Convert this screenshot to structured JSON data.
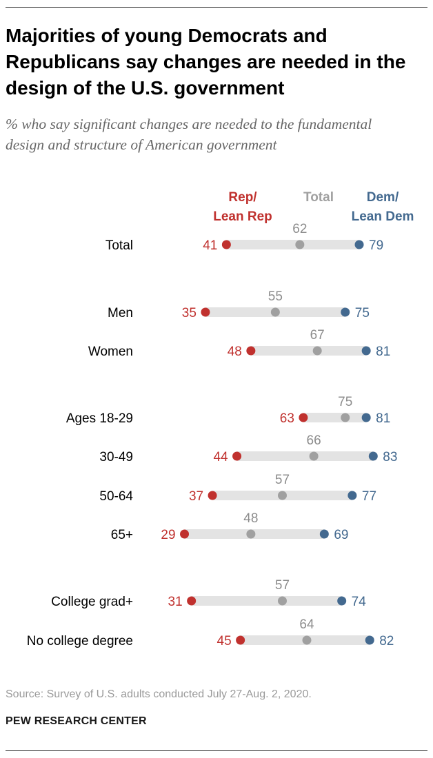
{
  "chart_data": {
    "type": "dot-plot",
    "title": "Majorities of young Democrats and Republicans say changes are needed in the design of the U.S. government",
    "subtitle": "% who say significant changes are needed to the fundamental design and structure of American government",
    "series": [
      {
        "key": "rep",
        "name": "Rep/\nLean Rep",
        "color": "#c0312e"
      },
      {
        "key": "total",
        "name": "Total",
        "color": "#a0a0a0"
      },
      {
        "key": "dem",
        "name": "Dem/\nLean Dem",
        "color": "#43698f"
      }
    ],
    "rows": [
      {
        "label": "Total",
        "rep": 41,
        "total": 62,
        "dem": 79
      },
      {
        "label": "Men",
        "rep": 35,
        "total": 55,
        "dem": 75
      },
      {
        "label": "Women",
        "rep": 48,
        "total": 67,
        "dem": 81
      },
      {
        "label": "Ages 18-29",
        "rep": 63,
        "total": 75,
        "dem": 81
      },
      {
        "label": "30-49",
        "rep": 44,
        "total": 66,
        "dem": 83
      },
      {
        "label": "50-64",
        "rep": 37,
        "total": 57,
        "dem": 77
      },
      {
        "label": "65+",
        "rep": 29,
        "total": 48,
        "dem": 69
      },
      {
        "label": "College grad+",
        "rep": 31,
        "total": 57,
        "dem": 74
      },
      {
        "label": "No college degree",
        "rep": 45,
        "total": 64,
        "dem": 82
      }
    ],
    "colors": {
      "bar": "#e3e3e3",
      "label": "#000000"
    },
    "grid": false
  },
  "footer": {
    "source": "Source: Survey of U.S. adults conducted July 27-Aug. 2, 2020.",
    "organization": "PEW RESEARCH CENTER"
  }
}
